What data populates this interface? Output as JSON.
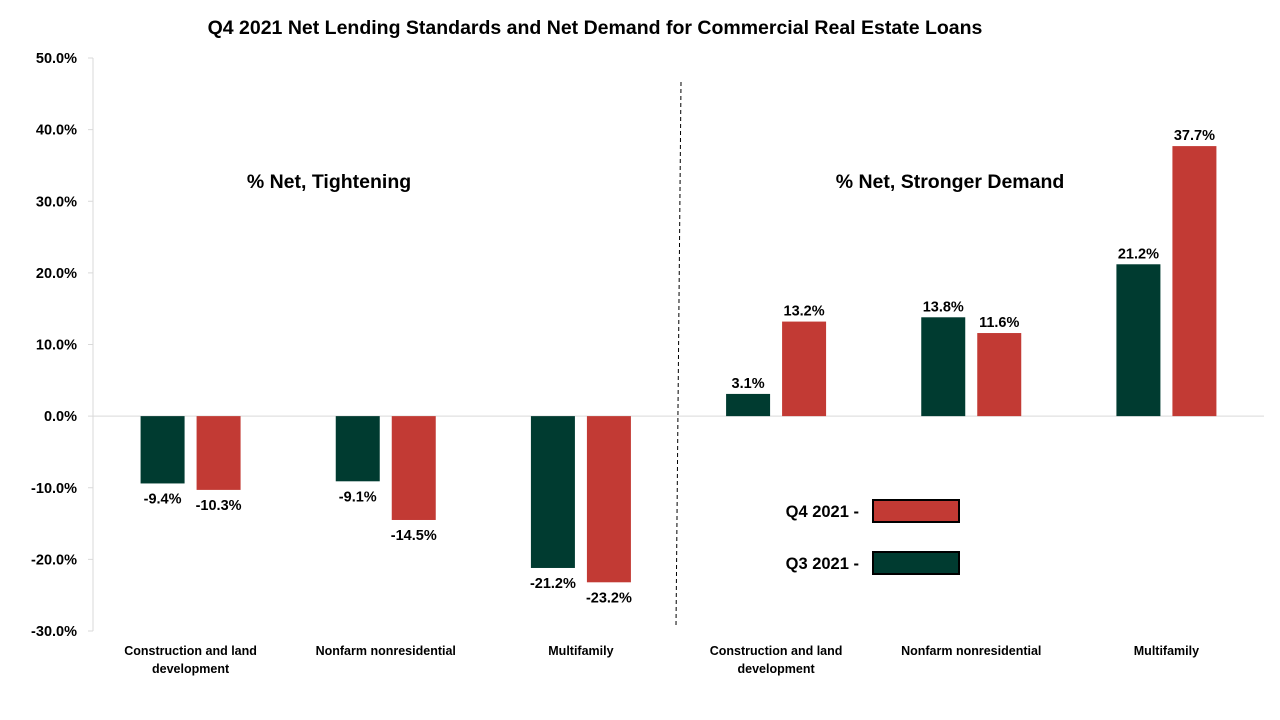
{
  "chart_data": {
    "type": "bar",
    "title": "Q4 2021 Net Lending Standards and Net Demand for Commercial Real Estate Loans",
    "xlabel": "",
    "ylabel": "",
    "ylim": [
      -30,
      50
    ],
    "y_ticks": [
      "50.0%",
      "40.0%",
      "30.0%",
      "20.0%",
      "10.0%",
      "0.0%",
      "-10.0%",
      "-20.0%",
      "-30.0%"
    ],
    "y_tick_values": [
      50,
      40,
      30,
      20,
      10,
      0,
      -10,
      -20,
      -30
    ],
    "grid": false,
    "categories": [
      [
        "Construction and land",
        "development"
      ],
      [
        "Nonfarm nonresidential"
      ],
      [
        "Multifamily"
      ],
      [
        "Construction and land",
        "development"
      ],
      [
        "Nonfarm nonresidential"
      ],
      [
        "Multifamily"
      ]
    ],
    "section_labels": [
      "% Net, Tightening",
      "% Net, Stronger Demand"
    ],
    "series": [
      {
        "name": "Q3 2021",
        "color": "#003b30",
        "values": [
          -9.4,
          -9.1,
          -21.2,
          3.1,
          13.8,
          21.2
        ],
        "labels": [
          "-9.4%",
          "-9.1%",
          "-21.2%",
          "3.1%",
          "13.8%",
          "21.2%"
        ]
      },
      {
        "name": "Q4 2021",
        "color": "#c23a34",
        "values": [
          -10.3,
          -14.5,
          -23.2,
          13.2,
          11.6,
          37.7
        ],
        "labels": [
          "-10.3%",
          "-14.5%",
          "-23.2%",
          "13.2%",
          "11.6%",
          "37.7%"
        ]
      }
    ],
    "legend": {
      "placement": "bottom-right",
      "entries": [
        {
          "label": "Q4 2021 -",
          "color": "#c23a34"
        },
        {
          "label": "Q3 2021 -",
          "color": "#003b30"
        }
      ]
    }
  }
}
